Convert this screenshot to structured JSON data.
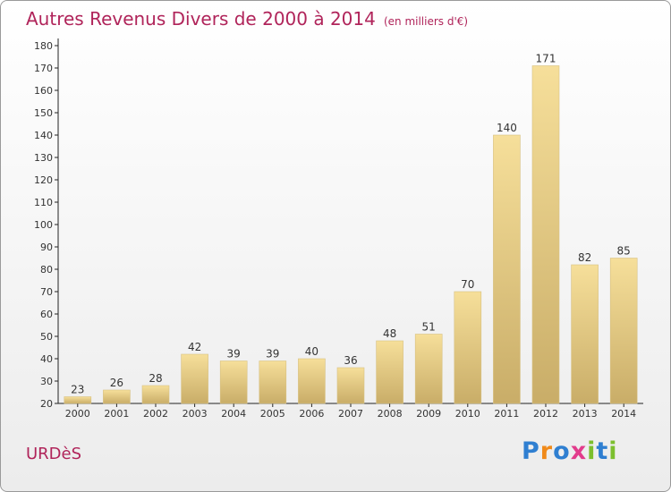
{
  "title": "Autres Revenus Divers de 2000 à 2014",
  "subtitle": "(en milliers d'€)",
  "commune": "URDèS",
  "logo": {
    "letters": [
      "P",
      "r",
      "o",
      "x",
      "i",
      "t",
      "i"
    ],
    "colors": [
      "#2f7fd1",
      "#f08a1a",
      "#2f7fd1",
      "#e23c8c",
      "#7cbf2e",
      "#2f7fd1",
      "#7cbf2e"
    ]
  },
  "chart_data": {
    "type": "bar",
    "categories": [
      "2000",
      "2001",
      "2002",
      "2003",
      "2004",
      "2005",
      "2006",
      "2007",
      "2008",
      "2009",
      "2010",
      "2011",
      "2012",
      "2013",
      "2014"
    ],
    "values": [
      23,
      26,
      28,
      42,
      39,
      39,
      40,
      36,
      48,
      51,
      70,
      140,
      171,
      82,
      85
    ],
    "ylim": [
      20,
      180
    ],
    "ytick_step": 10,
    "grid": false,
    "bar_color_light": "#f6df9a",
    "bar_color_dark": "#c9ad68"
  }
}
